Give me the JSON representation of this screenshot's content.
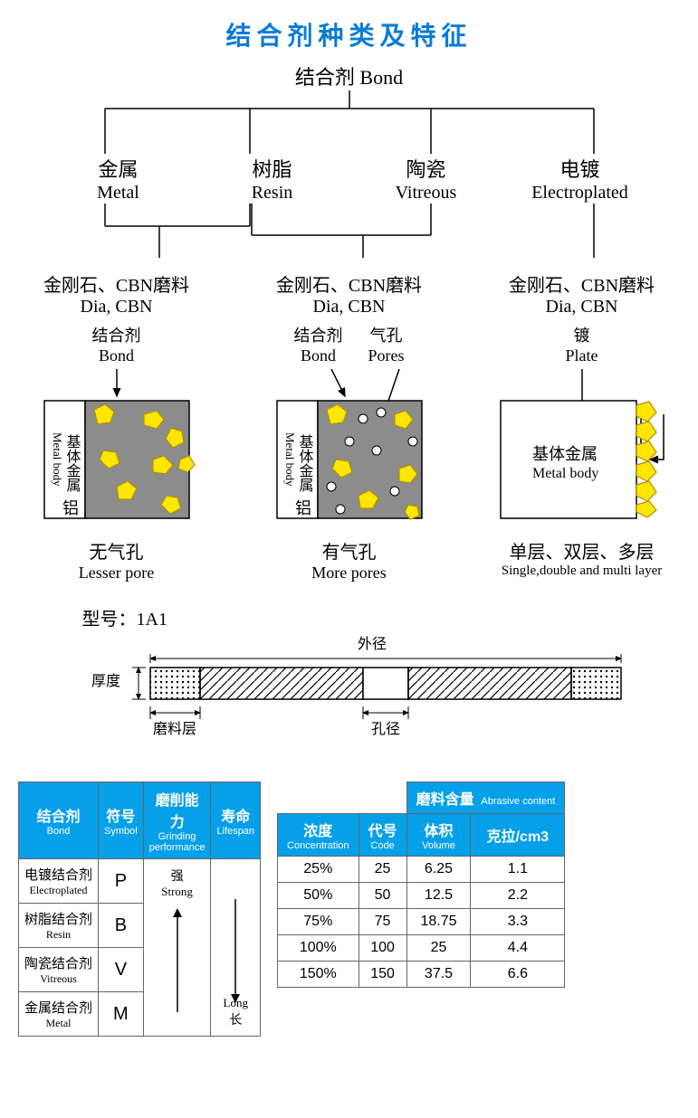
{
  "title": {
    "text": "结合剂种类及特征",
    "color": "#0a7bd6"
  },
  "tree": {
    "root": {
      "cn": "结合剂",
      "en": "Bond"
    },
    "level1": [
      {
        "cn": "金属",
        "en": "Metal"
      },
      {
        "cn": "树脂",
        "en": "Resin"
      },
      {
        "cn": "陶瓷",
        "en": "Vitreous"
      },
      {
        "cn": "电镀",
        "en": "Electroplated"
      }
    ],
    "line_color": "#000000"
  },
  "panels": {
    "shared": {
      "abrasive_cn": "金刚石、CBN磨料",
      "abrasive_en": "Dia, CBN",
      "metalbody_cn": "基体金属",
      "metalbody_en": "Metal body",
      "al_cn": "铝"
    },
    "items": [
      {
        "label_top_cn": "结合剂",
        "label_top_en": "Bond",
        "footer_cn": "无气孔",
        "footer_en": "Lesser pore",
        "has_pores": false,
        "bond_color": "#8c8c8c",
        "grain_fill": "#ffe600",
        "grain_stroke": "#b09000"
      },
      {
        "label_top_cn": "结合剂",
        "label_top_en": "Bond",
        "label_top2_cn": "气孔",
        "label_top2_en": "Pores",
        "footer_cn": "有气孔",
        "footer_en": "More pores",
        "has_pores": true,
        "bond_color": "#8c8c8c",
        "grain_fill": "#ffe600",
        "grain_stroke": "#b09000",
        "pore_fill": "#ffffff",
        "pore_stroke": "#000000"
      },
      {
        "label_top_cn": "镀",
        "label_top_en": "Plate",
        "footer_cn": "单层、双层、多层",
        "footer_en": "Single,double and multi layer",
        "metalbody_cn": "基体金属",
        "metalbody_en": "Metal body",
        "grain_fill": "#ffe600",
        "grain_stroke": "#b09000"
      }
    ]
  },
  "model": {
    "label": "型号：1A1",
    "outer_dia": "外径",
    "thickness": "厚度",
    "abrasive_layer": "磨料层",
    "bore": "孔径"
  },
  "table1": {
    "headers": [
      {
        "cn": "结合剂",
        "en": "Bond"
      },
      {
        "cn": "符号",
        "en": "Symbol"
      },
      {
        "cn": "磨削能力",
        "en": "Grinding performance"
      },
      {
        "cn": "寿命",
        "en": "Lifespan"
      }
    ],
    "rows": [
      {
        "name_cn": "电镀结合剂",
        "name_en": "Electroplated",
        "sym": "P"
      },
      {
        "name_cn": "树脂结合剂",
        "name_en": "Resin",
        "sym": "B"
      },
      {
        "name_cn": "陶瓷结合剂",
        "name_en": "Vitreous",
        "sym": "V"
      },
      {
        "name_cn": "金属结合剂",
        "name_en": "Metal",
        "sym": "M"
      }
    ],
    "grind_top_cn": "强",
    "grind_top_en": "Strong",
    "life_bot_en": "Long",
    "life_bot_cn": "长",
    "header_bg": "#06a0e9",
    "header_fg": "#ffffff"
  },
  "table2": {
    "group_header": {
      "cn": "磨料含量",
      "en": "Abrasive content"
    },
    "headers": [
      {
        "cn": "浓度",
        "en": "Concentration"
      },
      {
        "cn": "代号",
        "en": "Code"
      },
      {
        "cn": "体积",
        "en": "Volume"
      },
      {
        "cn": "克拉/cm3",
        "en": ""
      }
    ],
    "rows": [
      [
        "25%",
        "25",
        "6.25",
        "1.1"
      ],
      [
        "50%",
        "50",
        "12.5",
        "2.2"
      ],
      [
        "75%",
        "75",
        "18.75",
        "3.3"
      ],
      [
        "100%",
        "100",
        "25",
        "4.4"
      ],
      [
        "150%",
        "150",
        "37.5",
        "6.6"
      ]
    ],
    "header_bg": "#06a0e9",
    "header_fg": "#ffffff"
  }
}
